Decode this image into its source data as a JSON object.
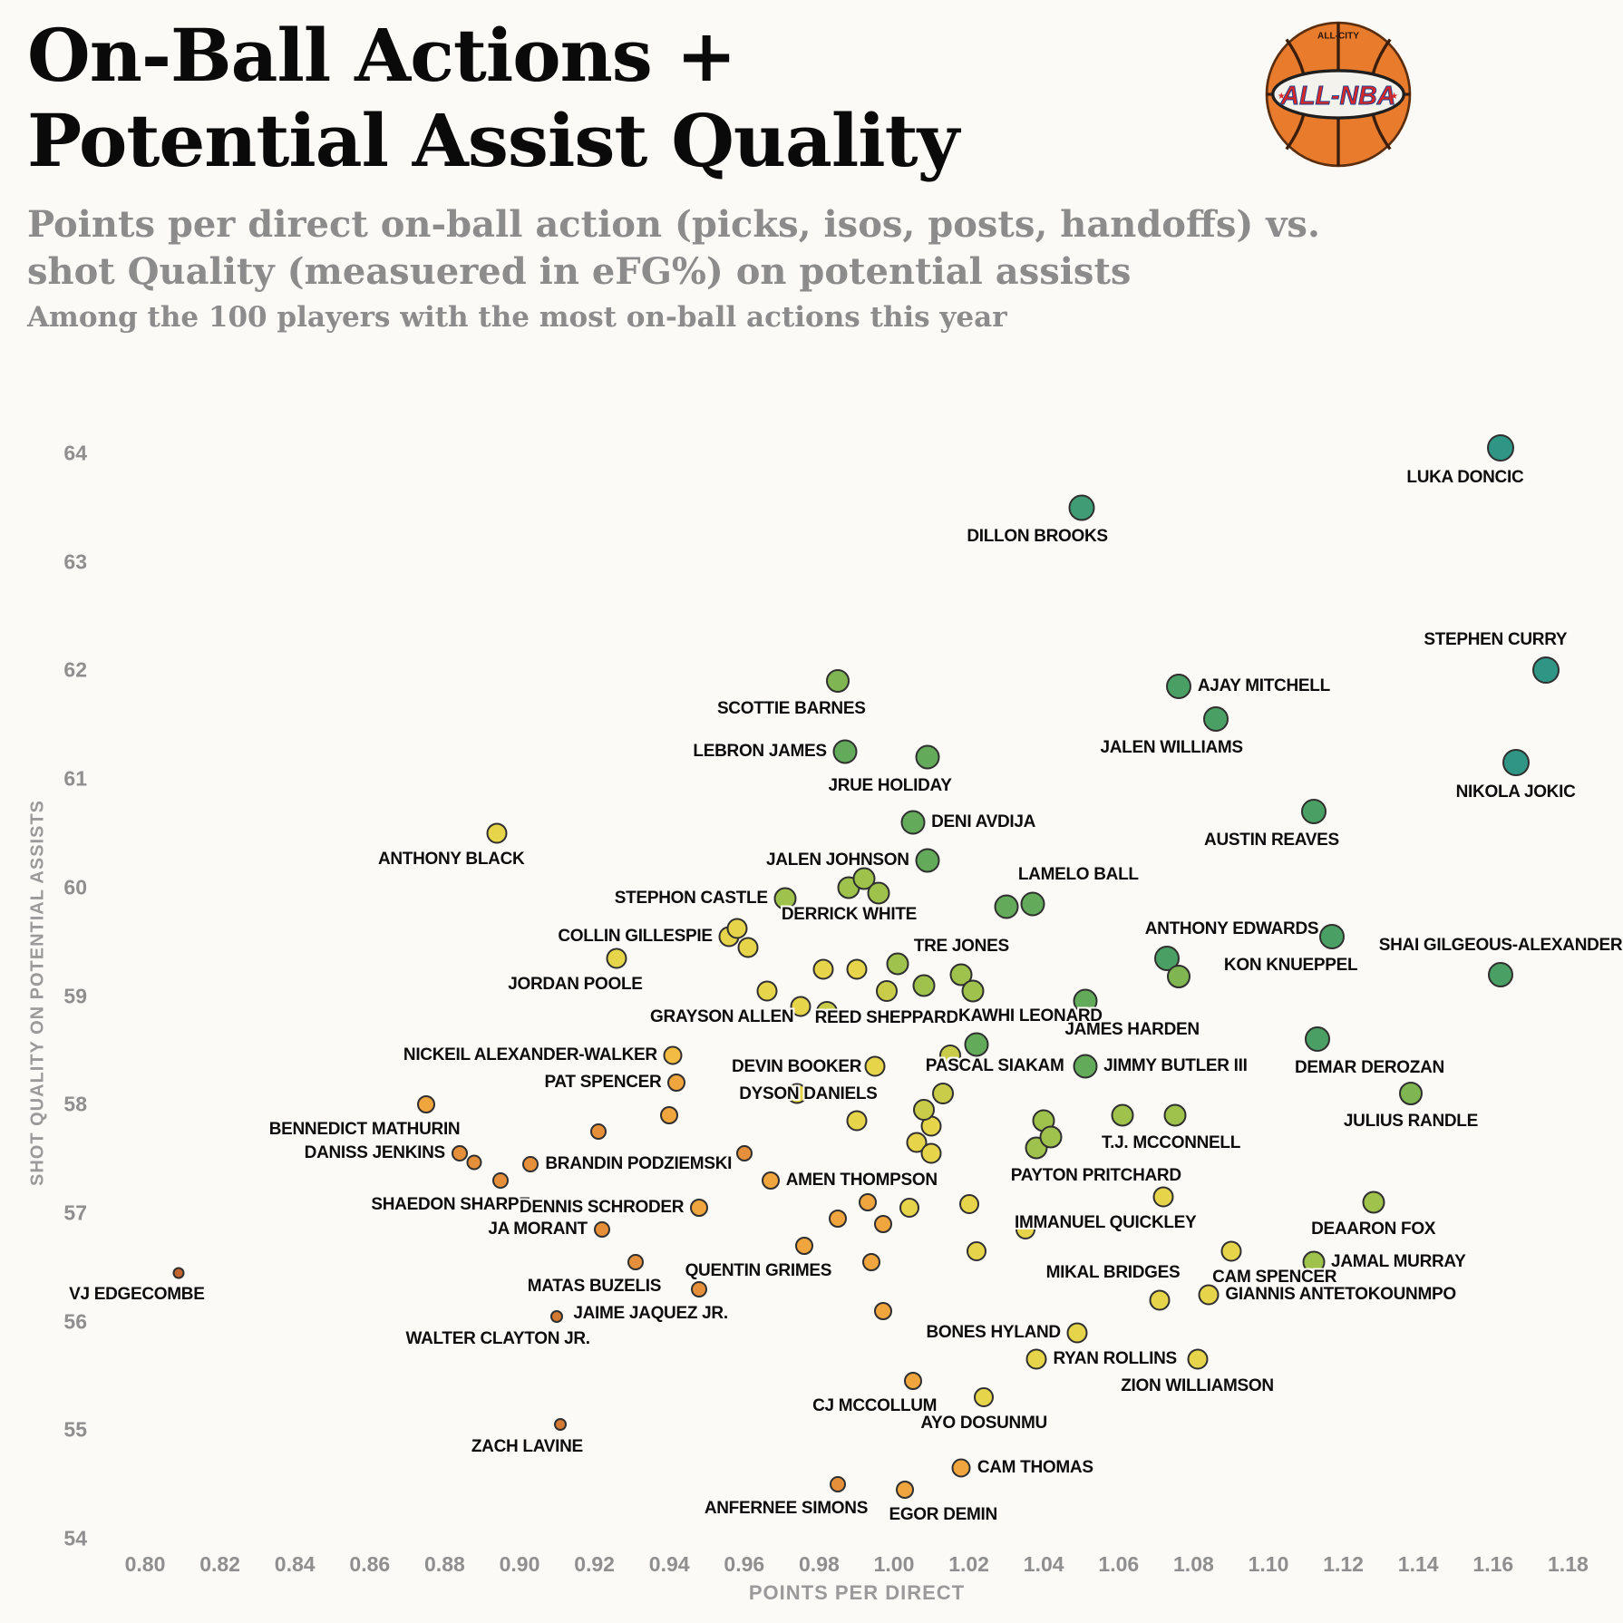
{
  "header": {
    "title_line1": "On-Ball Actions +",
    "title_line2": "Potential Assist Quality",
    "subtitle_line1": "Points per direct on-ball action (picks, isos, posts, handoffs) vs.",
    "subtitle_line2": "shot Quality (measuered in eFG%) on potential assists",
    "note": "Among the 100 players with the most on-ball actions this year"
  },
  "logo": {
    "brand_top": "ALL-CITY",
    "brand_main": "ALL-NBA",
    "star": "★",
    "ball_color": "#e87b2c",
    "band_color": "#f4f2ec",
    "text_red": "#d62828",
    "text_blue": "#1d3f8f"
  },
  "chart_data": {
    "type": "scatter",
    "title": "On-Ball Actions + Potential Assist Quality",
    "subtitle": "Points per direct on-ball action (picks, isos, posts, handoffs) vs. shot Quality (measuered in eFG%) on potential assists",
    "note": "Among the 100 players with the most on-ball actions this year",
    "xlabel": "POINTS PER DIRECT",
    "ylabel": "SHOT QUALITY ON POTENTIAL ASSISTS",
    "xlim": [
      0.788,
      1.19
    ],
    "ylim": [
      53.75,
      64.55
    ],
    "grid": false,
    "legend": "none",
    "x_ticks": [
      0.8,
      0.82,
      0.84,
      0.86,
      0.88,
      0.9,
      0.92,
      0.94,
      0.96,
      0.98,
      1.0,
      1.02,
      1.04,
      1.06,
      1.08,
      1.1,
      1.12,
      1.14,
      1.16,
      1.18
    ],
    "y_ticks": [
      54,
      55,
      56,
      57,
      58,
      59,
      60,
      61,
      62,
      63,
      64
    ],
    "points": [
      {
        "label": "LUKA DONCIC",
        "x": 1.162,
        "y": 64.05,
        "c": "#2f9584",
        "r": 15,
        "lp": "bl"
      },
      {
        "label": "DILLON BROOKS",
        "x": 1.05,
        "y": 63.5,
        "c": "#3f9c74",
        "r": 14.5,
        "lp": "bl"
      },
      {
        "label": "STEPHEN CURRY",
        "x": 1.174,
        "y": 62.0,
        "c": "#2f9584",
        "r": 15,
        "lp": "al"
      },
      {
        "label": "AJAY MITCHELL",
        "x": 1.076,
        "y": 61.85,
        "c": "#4aa064",
        "r": 14,
        "lp": "r"
      },
      {
        "label": "JALEN WILLIAMS",
        "x": 1.086,
        "y": 61.55,
        "c": "#4aa064",
        "r": 14,
        "lp": "bl"
      },
      {
        "label": "SCOTTIE BARNES",
        "x": 0.985,
        "y": 61.9,
        "c": "#7fb652",
        "r": 13,
        "lp": "bl"
      },
      {
        "label": "LEBRON JAMES",
        "x": 0.987,
        "y": 61.25,
        "c": "#63ab5b",
        "r": 13.5,
        "lp": "l"
      },
      {
        "label": "JRUE HOLIDAY",
        "x": 1.009,
        "y": 61.2,
        "c": "#63ab5b",
        "r": 13.5,
        "lp": "bl"
      },
      {
        "label": "NIKOLA JOKIC",
        "x": 1.166,
        "y": 61.15,
        "c": "#2f9584",
        "r": 15,
        "lp": "b"
      },
      {
        "label": "AUSTIN REAVES",
        "x": 1.112,
        "y": 60.7,
        "c": "#4aa064",
        "r": 14,
        "lp": "bl"
      },
      {
        "label": "DENI AVDIJA",
        "x": 1.005,
        "y": 60.6,
        "c": "#63ab5b",
        "r": 13.5,
        "lp": "r"
      },
      {
        "label": "ANTHONY BLACK",
        "x": 0.894,
        "y": 60.5,
        "c": "#e6d44b",
        "r": 11.5,
        "lp": "bl"
      },
      {
        "label": "JALEN JOHNSON",
        "x": 1.009,
        "y": 60.25,
        "c": "#63ab5b",
        "r": 13.5,
        "lp": "l"
      },
      {
        "label": "LAMELO BALL",
        "x": 1.037,
        "y": 59.85,
        "c": "#63ab5b",
        "r": 13.5,
        "lp": "ar"
      },
      {
        "label": "DERRICK WHITE",
        "x": 0.988,
        "y": 60.0,
        "c": "#9fc24c",
        "r": 12.5,
        "lp": "b"
      },
      {
        "label": "STEPHON CASTLE",
        "x": 0.971,
        "y": 59.9,
        "c": "#9fc24c",
        "r": 12.5,
        "lp": "l"
      },
      {
        "label": "ANTHONY EDWARDS",
        "x": 1.073,
        "y": 59.35,
        "c": "#4aa064",
        "r": 14,
        "lp": "ar"
      },
      {
        "label": "SHAI GILGEOUS-ALEXANDER",
        "x": 1.162,
        "y": 59.2,
        "c": "#4aa064",
        "r": 14,
        "lp": "a"
      },
      {
        "label": "KON KNUEPPEL",
        "x": 1.117,
        "y": 59.55,
        "c": "#4aa064",
        "r": 14,
        "lp": "bl"
      },
      {
        "label": "COLLIN GILLESPIE",
        "x": 0.956,
        "y": 59.55,
        "c": "#e6d44b",
        "r": 11.5,
        "lp": "l"
      },
      {
        "label": "JORDAN POOLE",
        "x": 0.926,
        "y": 59.35,
        "c": "#e6d44b",
        "r": 11.5,
        "lp": "bl"
      },
      {
        "label": "TRE JONES",
        "x": 1.018,
        "y": 59.2,
        "c": "#9fc24c",
        "r": 12.5,
        "lp": "a"
      },
      {
        "label": "JAMES HARDEN",
        "x": 1.051,
        "y": 58.95,
        "c": "#63ab5b",
        "r": 13.5,
        "lp": "br"
      },
      {
        "label": "GRAYSON ALLEN",
        "x": 0.966,
        "y": 59.05,
        "c": "#e6d44b",
        "r": 11.5,
        "lp": "bl"
      },
      {
        "label": "REED SHEPPARD",
        "x": 0.998,
        "y": 59.05,
        "c": "#c8cc49",
        "r": 12,
        "lp": "b"
      },
      {
        "label": "KAWHI LEONARD",
        "x": 1.022,
        "y": 58.55,
        "c": "#63ab5b",
        "r": 13.5,
        "lp": "ar"
      },
      {
        "label": "JIMMY BUTLER III",
        "x": 1.051,
        "y": 58.35,
        "c": "#63ab5b",
        "r": 13.5,
        "lp": "r"
      },
      {
        "label": "DEMAR DEROZAN",
        "x": 1.113,
        "y": 58.6,
        "c": "#4aa064",
        "r": 14,
        "lp": "br"
      },
      {
        "label": "NICKEIL ALEXANDER-WALKER",
        "x": 0.941,
        "y": 58.45,
        "c": "#f2bb43",
        "r": 10.5,
        "lp": "l"
      },
      {
        "label": "PAT SPENCER",
        "x": 0.942,
        "y": 58.2,
        "c": "#f0a53e",
        "r": 10,
        "lp": "l"
      },
      {
        "label": "DEVIN BOOKER",
        "x": 0.974,
        "y": 58.1,
        "c": "#e6d44b",
        "r": 11.5,
        "lp": "a"
      },
      {
        "label": "PASCAL SIAKAM",
        "x": 1.013,
        "y": 58.1,
        "c": "#c8cc49",
        "r": 12,
        "lp": "ar"
      },
      {
        "label": "JULIUS RANDLE",
        "x": 1.138,
        "y": 58.1,
        "c": "#7fb652",
        "r": 13,
        "lp": "b"
      },
      {
        "label": "DYSON DANIELS",
        "x": 0.99,
        "y": 57.85,
        "c": "#e6d44b",
        "r": 11.5,
        "lp": "al"
      },
      {
        "label": "BENNEDICT MATHURIN",
        "x": 0.875,
        "y": 58.0,
        "c": "#f0a53e",
        "r": 10,
        "lp": "bl"
      },
      {
        "label": "T.J. MCCONNELL",
        "x": 1.061,
        "y": 57.9,
        "c": "#9fc24c",
        "r": 12.5,
        "lp": "br"
      },
      {
        "label": "DANISS JENKINS",
        "x": 0.884,
        "y": 57.55,
        "c": "#e68f3a",
        "r": 9,
        "lp": "l"
      },
      {
        "label": "BRANDIN PODZIEMSKI",
        "x": 0.903,
        "y": 57.45,
        "c": "#e68f3a",
        "r": 9,
        "lp": "r"
      },
      {
        "label": "SHAEDON SHARPE",
        "x": 0.895,
        "y": 57.3,
        "c": "#e68f3a",
        "r": 9,
        "lp": "bl"
      },
      {
        "label": "AMEN THOMPSON",
        "x": 0.967,
        "y": 57.3,
        "c": "#f0a53e",
        "r": 10,
        "lp": "r"
      },
      {
        "label": "PAYTON PRITCHARD",
        "x": 1.038,
        "y": 57.6,
        "c": "#9fc24c",
        "r": 12.5,
        "lp": "br"
      },
      {
        "label": "DENNIS SCHRODER",
        "x": 0.948,
        "y": 57.05,
        "c": "#f0a53e",
        "r": 10,
        "lp": "l"
      },
      {
        "label": "JA MORANT",
        "x": 0.922,
        "y": 56.85,
        "c": "#e68f3a",
        "r": 9,
        "lp": "l"
      },
      {
        "label": "IMMANUEL QUICKLEY",
        "x": 1.072,
        "y": 57.15,
        "c": "#e6d44b",
        "r": 11.5,
        "lp": "bl"
      },
      {
        "label": "DEAARON FOX",
        "x": 1.128,
        "y": 57.1,
        "c": "#9fc24c",
        "r": 12.5,
        "lp": "b"
      },
      {
        "label": "MATAS BUZELIS",
        "x": 0.931,
        "y": 56.55,
        "c": "#e68f3a",
        "r": 9,
        "lp": "bl"
      },
      {
        "label": "QUENTIN GRIMES",
        "x": 0.976,
        "y": 56.7,
        "c": "#f0a53e",
        "r": 10,
        "lp": "bl"
      },
      {
        "label": "JAMAL MURRAY",
        "x": 1.112,
        "y": 56.55,
        "c": "#9fc24c",
        "r": 12.5,
        "lp": "r"
      },
      {
        "label": "CAM SPENCER",
        "x": 1.09,
        "y": 56.65,
        "c": "#e6d44b",
        "r": 11.5,
        "lp": "br"
      },
      {
        "label": "MIKAL BRIDGES",
        "x": 1.071,
        "y": 56.2,
        "c": "#e6d44b",
        "r": 11.5,
        "lp": "al"
      },
      {
        "label": "GIANNIS ANTETOKOUNMPO",
        "x": 1.084,
        "y": 56.25,
        "c": "#e6d44b",
        "r": 11.5,
        "lp": "r"
      },
      {
        "label": "JAIME JAQUEZ JR.",
        "x": 0.948,
        "y": 56.3,
        "c": "#e68f3a",
        "r": 9,
        "lp": "bl"
      },
      {
        "label": "VJ EDGECOMBE",
        "x": 0.809,
        "y": 56.45,
        "c": "#c4652e",
        "r": 6.5,
        "lp": "bl"
      },
      {
        "label": "WALTER CLAYTON JR.",
        "x": 0.91,
        "y": 56.05,
        "c": "#d47a33",
        "r": 7,
        "lp": "bl"
      },
      {
        "label": "BONES HYLAND",
        "x": 1.049,
        "y": 55.9,
        "c": "#e6d44b",
        "r": 11.5,
        "lp": "l"
      },
      {
        "label": "RYAN ROLLINS",
        "x": 1.038,
        "y": 55.65,
        "c": "#e6d44b",
        "r": 11.5,
        "lp": "r"
      },
      {
        "label": "ZION WILLIAMSON",
        "x": 1.081,
        "y": 55.65,
        "c": "#e6d44b",
        "r": 11.5,
        "lp": "b"
      },
      {
        "label": "CJ MCCOLLUM",
        "x": 1.005,
        "y": 55.45,
        "c": "#f0a53e",
        "r": 10,
        "lp": "bl"
      },
      {
        "label": "AYO DOSUNMU",
        "x": 1.024,
        "y": 55.3,
        "c": "#e6d44b",
        "r": 11,
        "lp": "b"
      },
      {
        "label": "ZACH LAVINE",
        "x": 0.911,
        "y": 55.05,
        "c": "#d47a33",
        "r": 7,
        "lp": "bl"
      },
      {
        "label": "CAM THOMAS",
        "x": 1.018,
        "y": 54.65,
        "c": "#f0a53e",
        "r": 10.5,
        "lp": "r"
      },
      {
        "label": "EGOR DEMIN",
        "x": 1.003,
        "y": 54.45,
        "c": "#f0a53e",
        "r": 10,
        "lp": "br"
      },
      {
        "label": "ANFERNEE SIMONS",
        "x": 0.985,
        "y": 54.5,
        "c": "#e68f3a",
        "r": 9,
        "lp": "bl"
      },
      {
        "x": 0.958,
        "y": 59.62,
        "c": "#e6d44b",
        "r": 11.5
      },
      {
        "x": 0.961,
        "y": 59.45,
        "c": "#e6d44b",
        "r": 11.5
      },
      {
        "x": 0.992,
        "y": 60.08,
        "c": "#9fc24c",
        "r": 12.5
      },
      {
        "x": 0.996,
        "y": 59.95,
        "c": "#9fc24c",
        "r": 12.5
      },
      {
        "x": 0.981,
        "y": 59.25,
        "c": "#e6d44b",
        "r": 11.5
      },
      {
        "x": 0.99,
        "y": 59.25,
        "c": "#e6d44b",
        "r": 11.5
      },
      {
        "x": 1.001,
        "y": 59.3,
        "c": "#9fc24c",
        "r": 12.5
      },
      {
        "x": 1.008,
        "y": 59.1,
        "c": "#9fc24c",
        "r": 12.5
      },
      {
        "x": 0.975,
        "y": 58.9,
        "c": "#e6d44b",
        "r": 11.5
      },
      {
        "x": 0.982,
        "y": 58.85,
        "c": "#c8cc49",
        "r": 12
      },
      {
        "x": 1.021,
        "y": 59.05,
        "c": "#9fc24c",
        "r": 12.5
      },
      {
        "x": 1.076,
        "y": 59.18,
        "c": "#7fb652",
        "r": 13
      },
      {
        "x": 1.015,
        "y": 58.45,
        "c": "#c8cc49",
        "r": 12
      },
      {
        "x": 0.995,
        "y": 58.35,
        "c": "#e6d44b",
        "r": 11.5
      },
      {
        "x": 1.01,
        "y": 57.8,
        "c": "#e6d44b",
        "r": 11.5
      },
      {
        "x": 1.006,
        "y": 57.65,
        "c": "#e6d44b",
        "r": 11.5
      },
      {
        "x": 1.04,
        "y": 57.85,
        "c": "#9fc24c",
        "r": 12.5
      },
      {
        "x": 1.075,
        "y": 57.9,
        "c": "#9fc24c",
        "r": 12.5
      },
      {
        "x": 0.94,
        "y": 57.9,
        "c": "#f0a53e",
        "r": 10
      },
      {
        "x": 0.921,
        "y": 57.75,
        "c": "#e68f3a",
        "r": 9
      },
      {
        "x": 0.96,
        "y": 57.55,
        "c": "#e68f3a",
        "r": 9
      },
      {
        "x": 1.01,
        "y": 57.55,
        "c": "#e6d44b",
        "r": 11.5
      },
      {
        "x": 1.02,
        "y": 57.08,
        "c": "#e6d44b",
        "r": 11
      },
      {
        "x": 1.004,
        "y": 57.05,
        "c": "#e6d44b",
        "r": 11
      },
      {
        "x": 0.993,
        "y": 57.1,
        "c": "#f0a53e",
        "r": 10
      },
      {
        "x": 0.985,
        "y": 56.95,
        "c": "#f0a53e",
        "r": 10
      },
      {
        "x": 0.997,
        "y": 56.9,
        "c": "#f0a53e",
        "r": 10
      },
      {
        "x": 1.035,
        "y": 56.85,
        "c": "#e6d44b",
        "r": 11
      },
      {
        "x": 1.022,
        "y": 56.65,
        "c": "#e6d44b",
        "r": 11
      },
      {
        "x": 0.994,
        "y": 56.55,
        "c": "#f0a53e",
        "r": 10
      },
      {
        "x": 0.997,
        "y": 56.1,
        "c": "#f0a53e",
        "r": 10
      },
      {
        "x": 0.888,
        "y": 57.47,
        "c": "#e68f3a",
        "r": 8.5
      },
      {
        "x": 1.042,
        "y": 57.7,
        "c": "#9fc24c",
        "r": 12.5
      },
      {
        "x": 1.03,
        "y": 59.82,
        "c": "#63ab5b",
        "r": 13.5
      },
      {
        "x": 1.008,
        "y": 57.95,
        "c": "#c8cc49",
        "r": 12
      }
    ]
  }
}
